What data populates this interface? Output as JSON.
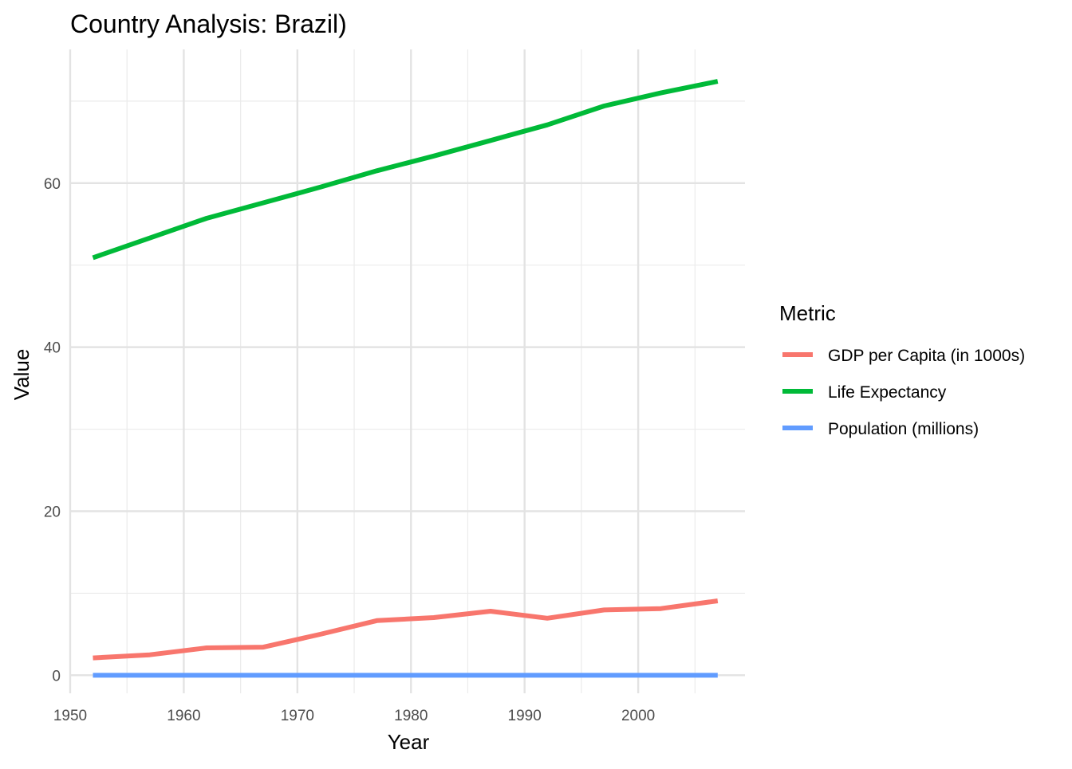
{
  "chart_data": {
    "type": "line",
    "title": "Country Analysis: Brazil)",
    "xlabel": "Year",
    "ylabel": "Value",
    "xlim": [
      1950,
      2009.4
    ],
    "ylim": [
      -2.2,
      76.3
    ],
    "x_ticks": [
      1950,
      1960,
      1970,
      1980,
      1990,
      2000
    ],
    "x_tick_labels": [
      "1950",
      "1960",
      "1970",
      "1980",
      "1990",
      "2000"
    ],
    "y_ticks": [
      0,
      20,
      40,
      60
    ],
    "y_tick_labels": [
      "0",
      "20",
      "40",
      "60"
    ],
    "x_minor_ticks": [
      1955,
      1965,
      1975,
      1985,
      1995,
      2005
    ],
    "y_minor_ticks": [
      10,
      30,
      50,
      70
    ],
    "grid": true,
    "legend": {
      "title": "Metric",
      "position": "right"
    },
    "x": [
      1952,
      1957,
      1962,
      1967,
      1972,
      1977,
      1982,
      1987,
      1992,
      1997,
      2002,
      2007
    ],
    "series": [
      {
        "name": "GDP per Capita (in 1000s)",
        "color": "#F8766D",
        "values": [
          2.11,
          2.49,
          3.34,
          3.43,
          4.99,
          6.66,
          7.03,
          7.81,
          6.95,
          7.96,
          8.13,
          9.07
        ]
      },
      {
        "name": "Life Expectancy",
        "color": "#00BA38",
        "values": [
          50.9,
          53.3,
          55.7,
          57.6,
          59.5,
          61.5,
          63.3,
          65.2,
          67.1,
          69.4,
          71.0,
          72.4
        ]
      },
      {
        "name": "Population (millions)",
        "color": "#619CFF",
        "values": [
          0,
          0,
          0,
          0,
          0,
          0,
          0,
          0,
          0,
          0,
          0,
          0
        ]
      }
    ]
  }
}
